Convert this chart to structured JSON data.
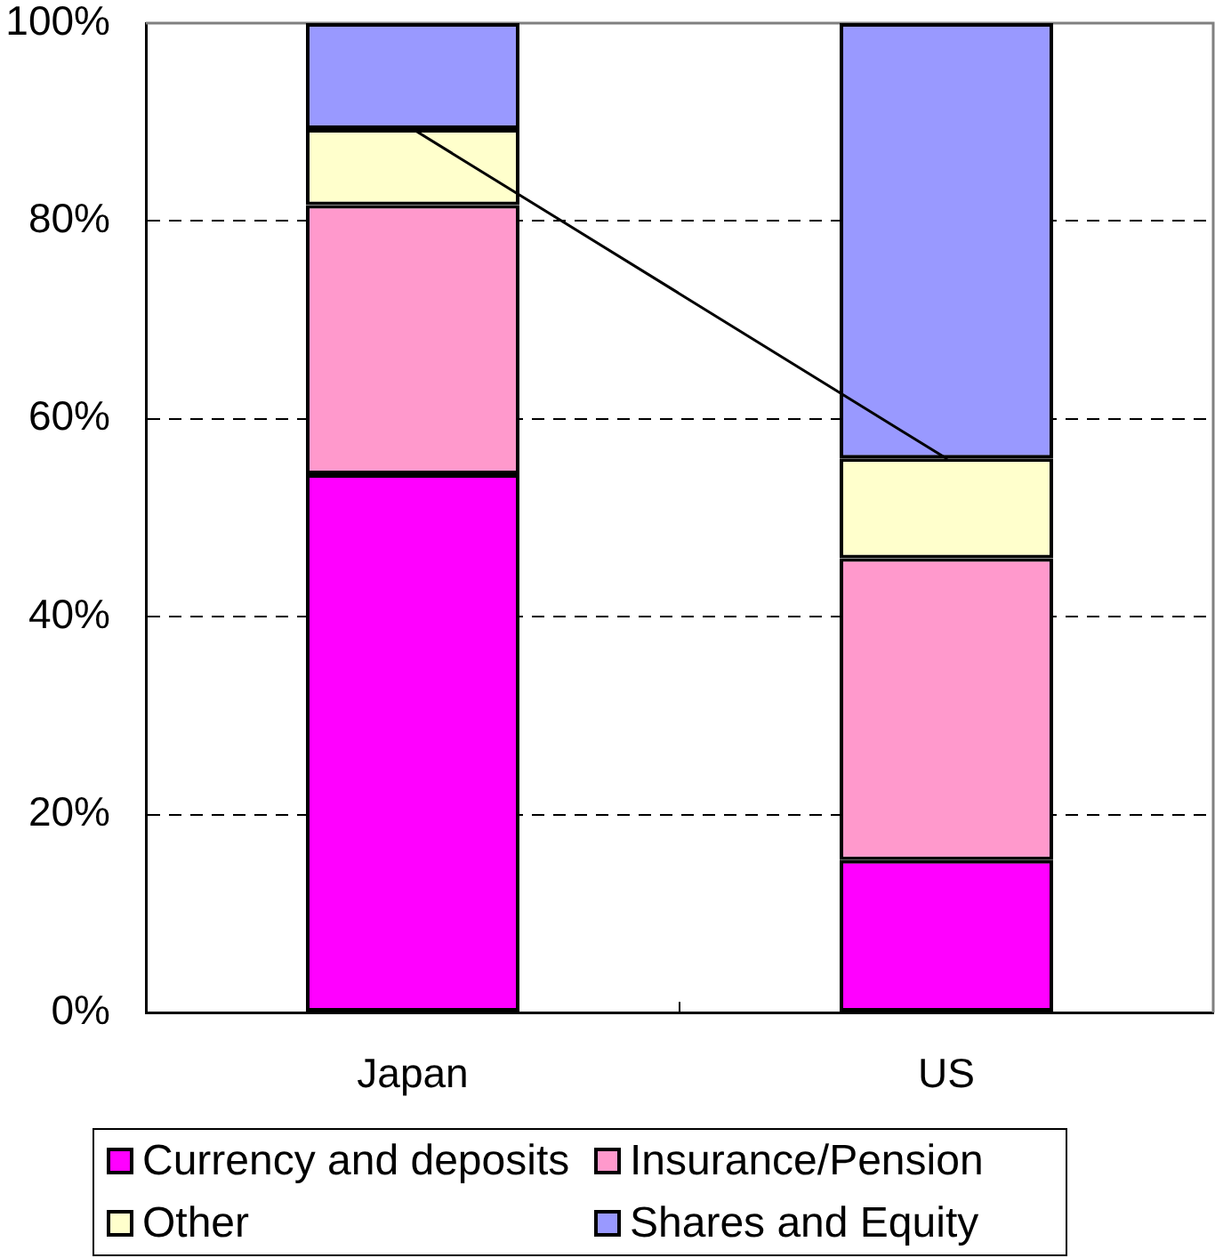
{
  "chart_data": {
    "type": "bar",
    "categories": [
      "Japan",
      "US"
    ],
    "series": [
      {
        "name": "Currency and deposits",
        "color": "#ff00ff",
        "values": [
          54.4,
          15.4
        ]
      },
      {
        "name": "Insurance/Pension",
        "color": "#ff99cc",
        "values": [
          27.2,
          30.5
        ]
      },
      {
        "name": "Other",
        "color": "#ffffcc",
        "values": [
          7.7,
          10.1
        ]
      },
      {
        "name": "Shares and Equity",
        "color": "#9999ff",
        "values": [
          10.7,
          44.0
        ]
      },
      {
        "type": "line",
        "color": "#000000",
        "values": [
          89.3,
          56.0
        ]
      }
    ],
    "stacked": true,
    "ylim": [
      0,
      100
    ],
    "yticks": [
      {
        "value": 0,
        "label": "0%"
      },
      {
        "value": 20,
        "label": "20%"
      },
      {
        "value": 40,
        "label": "40%"
      },
      {
        "value": 60,
        "label": "60%"
      },
      {
        "value": 80,
        "label": "80%"
      },
      {
        "value": 100,
        "label": "100%"
      }
    ],
    "grid": "y",
    "legend": "bottom"
  }
}
